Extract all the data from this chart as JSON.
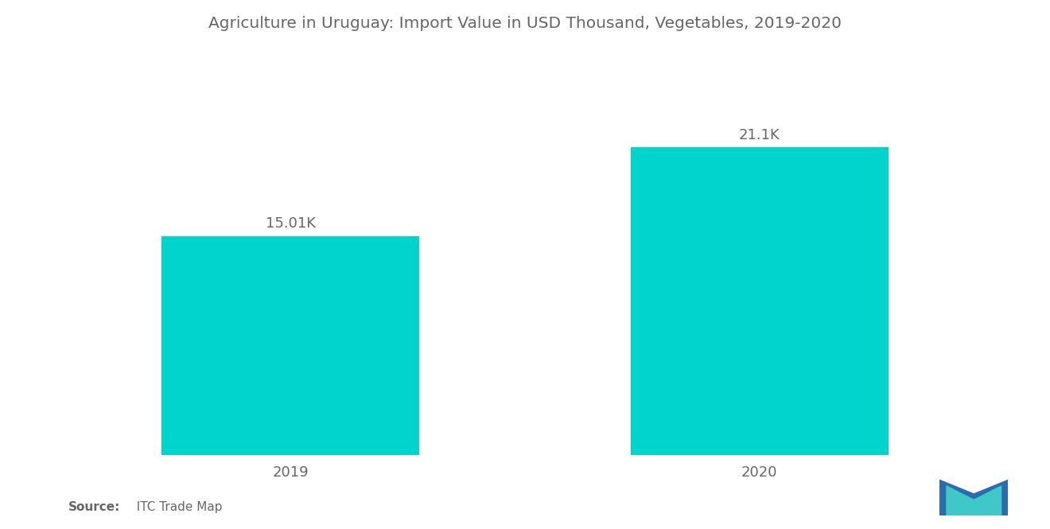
{
  "title": "Agriculture in Uruguay: Import Value in USD Thousand, Vegetables, 2019-2020",
  "categories": [
    "2019",
    "2020"
  ],
  "values": [
    15010,
    21100
  ],
  "bar_labels": [
    "15.01K",
    "21.1K"
  ],
  "bar_color": "#00D4CC",
  "background_color": "#ffffff",
  "title_fontsize": 14.5,
  "label_fontsize": 13,
  "tick_fontsize": 13,
  "source_bold": "Source:",
  "source_rest": "  ITC Trade Map",
  "ylim": [
    0,
    26000
  ],
  "bar_width": 0.55,
  "xlim": [
    -0.55,
    1.55
  ],
  "text_color": "#666666",
  "logo_blue": "#2B6CB0",
  "logo_teal": "#40C8C8"
}
